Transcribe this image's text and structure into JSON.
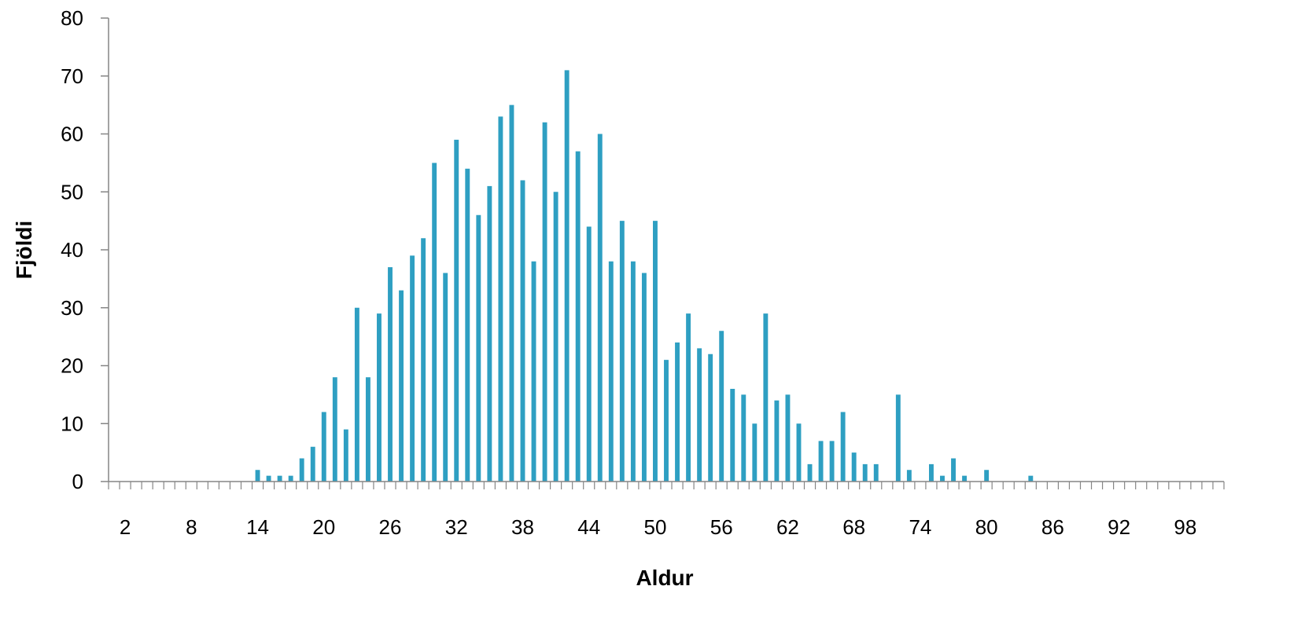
{
  "chart_data": {
    "type": "bar",
    "title": "",
    "xlabel": "Aldur",
    "ylabel": "Fjöldi",
    "bar_color": "#2e9fc2",
    "axis_color": "#868686",
    "grid": false,
    "legend": "none",
    "ylim": [
      0,
      80
    ],
    "yticks": [
      0,
      10,
      20,
      30,
      40,
      50,
      60,
      70,
      80
    ],
    "x_range": [
      1,
      101
    ],
    "x_tick_labels": [
      2,
      8,
      14,
      20,
      26,
      32,
      38,
      44,
      50,
      56,
      62,
      68,
      74,
      80,
      86,
      92,
      98
    ],
    "categories": [
      1,
      2,
      3,
      4,
      5,
      6,
      7,
      8,
      9,
      10,
      11,
      12,
      13,
      14,
      15,
      16,
      17,
      18,
      19,
      20,
      21,
      22,
      23,
      24,
      25,
      26,
      27,
      28,
      29,
      30,
      31,
      32,
      33,
      34,
      35,
      36,
      37,
      38,
      39,
      40,
      41,
      42,
      43,
      44,
      45,
      46,
      47,
      48,
      49,
      50,
      51,
      52,
      53,
      54,
      55,
      56,
      57,
      58,
      59,
      60,
      61,
      62,
      63,
      64,
      65,
      66,
      67,
      68,
      69,
      70,
      71,
      72,
      73,
      74,
      75,
      76,
      77,
      78,
      79,
      80,
      81,
      82,
      83,
      84,
      85,
      86,
      87,
      88,
      89,
      90,
      91,
      92,
      93,
      94,
      95,
      96,
      97,
      98,
      99,
      100,
      101
    ],
    "values": [
      0,
      0,
      0,
      0,
      0,
      0,
      0,
      0,
      0,
      0,
      0,
      0,
      0,
      2,
      1,
      1,
      1,
      4,
      6,
      12,
      18,
      9,
      30,
      18,
      29,
      37,
      33,
      39,
      42,
      55,
      36,
      59,
      54,
      46,
      51,
      63,
      65,
      52,
      38,
      62,
      50,
      71,
      57,
      44,
      60,
      38,
      45,
      38,
      36,
      45,
      21,
      24,
      29,
      23,
      22,
      26,
      16,
      15,
      10,
      29,
      14,
      15,
      10,
      3,
      7,
      7,
      12,
      5,
      3,
      3,
      0,
      15,
      2,
      0,
      3,
      1,
      4,
      1,
      0,
      2,
      0,
      0,
      0,
      1,
      0,
      0,
      0,
      0,
      0,
      0,
      0,
      0,
      0,
      0,
      0,
      0,
      0,
      0,
      0,
      0,
      0
    ]
  }
}
